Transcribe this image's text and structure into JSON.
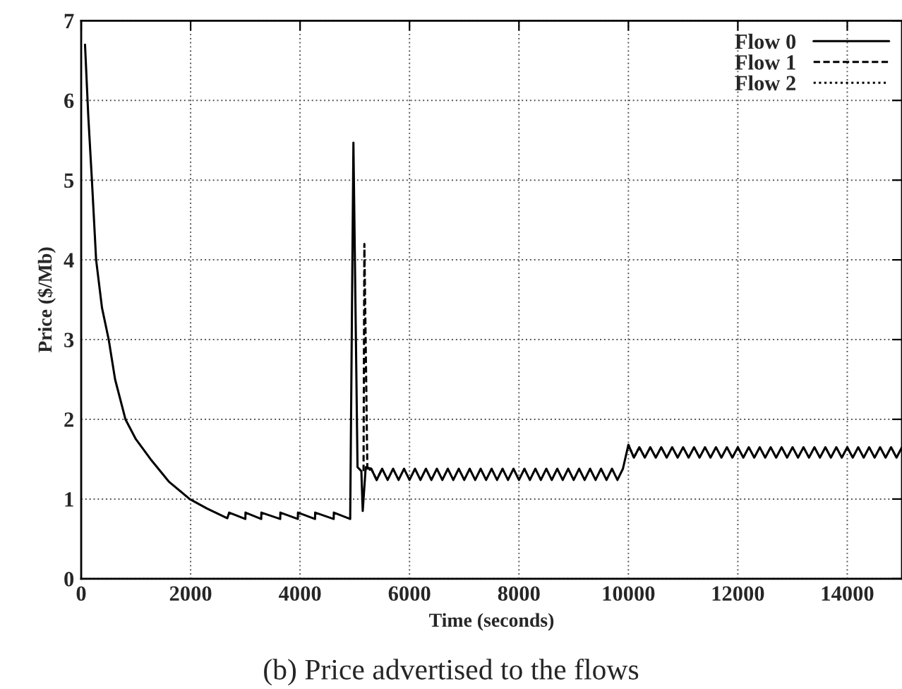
{
  "chart_data": {
    "type": "line",
    "annotations": [
      "(b) Price advertised to the flows"
    ],
    "xlabel": "Time (seconds)",
    "ylabel": "Price ($/Mb)",
    "xlim": [
      0,
      15000
    ],
    "xticks": [
      0,
      2000,
      4000,
      6000,
      8000,
      10000,
      12000,
      14000
    ],
    "ylim": [
      0,
      7
    ],
    "yticks": [
      0,
      1,
      2,
      3,
      4,
      5,
      6,
      7
    ],
    "grid": true,
    "legend": "top right",
    "marker": "none",
    "series": [
      {
        "name": "Flow 0",
        "color": "#000000",
        "line_style": "solid",
        "x": [
          70,
          130,
          196,
          273,
          380,
          503,
          620,
          809,
          1000,
          1268,
          1600,
          1982,
          2300,
          2671,
          2704,
          3000,
          3003,
          3290,
          3293,
          3637,
          3640,
          3959,
          3962,
          4273,
          4276,
          4614,
          4617,
          4916,
          4975,
          5050,
          5120,
          5145,
          5200,
          5300,
          5400,
          5500,
          5600,
          5700,
          5800,
          5900,
          6000,
          6100,
          6200,
          6300,
          6400,
          6500,
          6600,
          6700,
          6800,
          6900,
          7000,
          7100,
          7200,
          7300,
          7400,
          7500,
          7600,
          7700,
          7800,
          7900,
          8000,
          8100,
          8200,
          8300,
          8400,
          8500,
          8600,
          8700,
          8800,
          8900,
          9000,
          9100,
          9200,
          9300,
          9400,
          9500,
          9600,
          9700,
          9800,
          9900,
          10000,
          10100,
          10200,
          10300,
          10400,
          10500,
          10600,
          10700,
          10800,
          10900,
          11000,
          11100,
          11200,
          11300,
          11400,
          11500,
          11600,
          11700,
          11800,
          11900,
          12000,
          12100,
          12200,
          12300,
          12400,
          12500,
          12600,
          12700,
          12800,
          12900,
          13000,
          13100,
          13200,
          13300,
          13400,
          13500,
          13600,
          13700,
          13800,
          13900,
          14000,
          14100,
          14200,
          14300,
          14400,
          14500,
          14600,
          14700,
          14800,
          14900,
          15000
        ],
        "values": [
          6.7,
          5.8,
          5,
          4,
          3.4,
          3,
          2.5,
          2,
          1.75,
          1.5,
          1.22,
          1,
          0.88,
          0.76,
          0.83,
          0.75,
          0.83,
          0.75,
          0.83,
          0.75,
          0.83,
          0.75,
          0.83,
          0.75,
          0.83,
          0.75,
          0.83,
          0.75,
          5.47,
          1.4,
          1.35,
          0.85,
          1.4,
          1.38,
          1.24,
          1.38,
          1.24,
          1.38,
          1.24,
          1.38,
          1.24,
          1.38,
          1.24,
          1.38,
          1.24,
          1.38,
          1.24,
          1.38,
          1.24,
          1.38,
          1.24,
          1.38,
          1.24,
          1.38,
          1.24,
          1.38,
          1.24,
          1.38,
          1.24,
          1.38,
          1.24,
          1.38,
          1.24,
          1.38,
          1.24,
          1.38,
          1.24,
          1.38,
          1.24,
          1.38,
          1.24,
          1.38,
          1.24,
          1.38,
          1.24,
          1.38,
          1.24,
          1.38,
          1.24,
          1.38,
          1.68,
          1.52,
          1.65,
          1.52,
          1.65,
          1.52,
          1.65,
          1.52,
          1.65,
          1.52,
          1.65,
          1.52,
          1.65,
          1.52,
          1.65,
          1.52,
          1.65,
          1.52,
          1.65,
          1.52,
          1.65,
          1.52,
          1.65,
          1.52,
          1.65,
          1.52,
          1.65,
          1.52,
          1.65,
          1.52,
          1.65,
          1.52,
          1.65,
          1.52,
          1.65,
          1.52,
          1.65,
          1.52,
          1.65,
          1.52,
          1.65,
          1.52,
          1.65,
          1.52,
          1.65,
          1.52,
          1.65,
          1.52,
          1.65,
          1.52,
          1.65
        ]
      },
      {
        "name": "Flow 1",
        "color": "#000000",
        "line_style": "dashed",
        "x": [
          5160,
          5175,
          5230,
          5300,
          5400,
          5500
        ],
        "values": [
          1.35,
          4.2,
          1.35,
          1.38,
          1.24,
          1.38
        ]
      },
      {
        "name": "Flow 2",
        "color": "#000000",
        "line_style": "dotted",
        "x": [
          10000,
          10100,
          10200,
          10300
        ],
        "values": [
          1.68,
          1.52,
          1.65,
          1.52
        ]
      }
    ]
  }
}
